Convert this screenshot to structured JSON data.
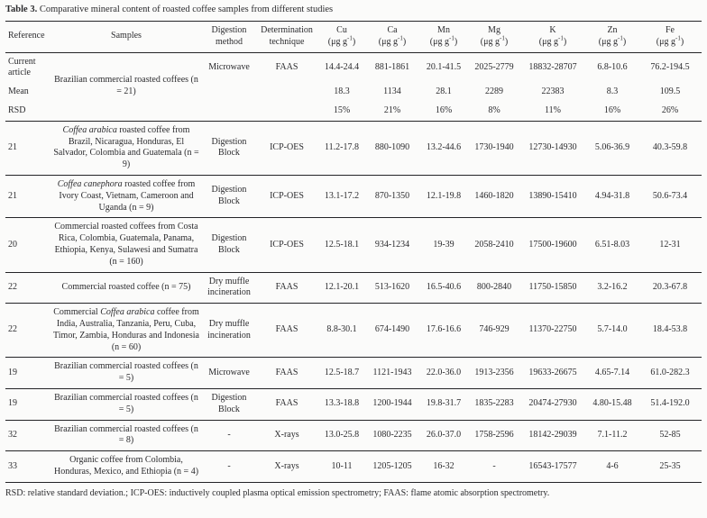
{
  "caption": {
    "label": "Table 3.",
    "text": "Comparative mineral content of roasted coffee samples from different studies"
  },
  "table": {
    "text_columns": [
      {
        "key": "reference",
        "lines": [
          "Reference"
        ]
      },
      {
        "key": "samples",
        "lines": [
          "Samples"
        ]
      },
      {
        "key": "digestion",
        "lines": [
          "Digestion",
          "method"
        ]
      },
      {
        "key": "technique",
        "lines": [
          "Determination",
          "technique"
        ]
      }
    ],
    "element_columns": [
      {
        "key": "cu",
        "symbol": "Cu"
      },
      {
        "key": "ca",
        "symbol": "Ca"
      },
      {
        "key": "mn",
        "symbol": "Mn"
      },
      {
        "key": "mg",
        "symbol": "Mg"
      },
      {
        "key": "k",
        "symbol": "K"
      },
      {
        "key": "zn",
        "symbol": "Zn"
      },
      {
        "key": "fe",
        "symbol": "Fe"
      }
    ],
    "unit": {
      "prefix": "(μg g",
      "exponent": "-1",
      "suffix": ")"
    },
    "current_block": {
      "samples": [
        {
          "t": "Brazilian commercial roasted coffees (n = 21)",
          "i": false
        }
      ],
      "rows": [
        {
          "reference": "Current article",
          "digestion": "Microwave",
          "technique": "FAAS",
          "values": [
            "14.4-24.4",
            "881-1861",
            "20.1-41.5",
            "2025-2779",
            "18832-28707",
            "6.8-10.6",
            "76.2-194.5"
          ]
        },
        {
          "reference": "Mean",
          "digestion": "",
          "technique": "",
          "values": [
            "18.3",
            "1134",
            "28.1",
            "2289",
            "22383",
            "8.3",
            "109.5"
          ]
        },
        {
          "reference": "RSD",
          "digestion": "",
          "technique": "",
          "values": [
            "15%",
            "21%",
            "16%",
            "8%",
            "11%",
            "16%",
            "26%"
          ]
        }
      ]
    },
    "rows": [
      {
        "reference": "21",
        "samples": [
          {
            "t": "Coffea arabica",
            "i": true
          },
          {
            "t": " roasted coffee from Brazil, Nicaragua, Honduras, El Salvador, Colombia and Guatemala (n = 9)",
            "i": false
          }
        ],
        "digestion": "Digestion Block",
        "technique": "ICP-OES",
        "values": [
          "11.2-17.8",
          "880-1090",
          "13.2-44.6",
          "1730-1940",
          "12730-14930",
          "5.06-36.9",
          "40.3-59.8"
        ]
      },
      {
        "reference": "21",
        "samples": [
          {
            "t": "Coffea canephora",
            "i": true
          },
          {
            "t": " roasted coffee from Ivory Coast, Vietnam, Cameroon and Uganda (n = 9)",
            "i": false
          }
        ],
        "digestion": "Digestion Block",
        "technique": "ICP-OES",
        "values": [
          "13.1-17.2",
          "870-1350",
          "12.1-19.8",
          "1460-1820",
          "13890-15410",
          "4.94-31.8",
          "50.6-73.4"
        ]
      },
      {
        "reference": "20",
        "samples": [
          {
            "t": "Commercial roasted coffees from Costa Rica, Colombia, Guatemala, Panama, Ethiopia, Kenya, Sulawesi and Sumatra (n = 160)",
            "i": false
          }
        ],
        "digestion": "Digestion Block",
        "technique": "ICP-OES",
        "values": [
          "12.5-18.1",
          "934-1234",
          "19-39",
          "2058-2410",
          "17500-19600",
          "6.51-8.03",
          "12-31"
        ]
      },
      {
        "reference": "22",
        "samples": [
          {
            "t": "Commercial roasted coffee (n = 75)",
            "i": false
          }
        ],
        "digestion": "Dry muffle incineration",
        "technique": "FAAS",
        "values": [
          "12.1-20.1",
          "513-1620",
          "16.5-40.6",
          "800-2840",
          "11750-15850",
          "3.2-16.2",
          "20.3-67.8"
        ]
      },
      {
        "reference": "22",
        "samples": [
          {
            "t": "Commercial ",
            "i": false
          },
          {
            "t": "Coffea arabica",
            "i": true
          },
          {
            "t": " coffee from India, Australia, Tanzania, Peru, Cuba, Timor, Zambia, Honduras and Indonesia (n = 60)",
            "i": false
          }
        ],
        "digestion": "Dry muffle incineration",
        "technique": "FAAS",
        "values": [
          "8.8-30.1",
          "674-1490",
          "17.6-16.6",
          "746-929",
          "11370-22750",
          "5.7-14.0",
          "18.4-53.8"
        ]
      },
      {
        "reference": "19",
        "samples": [
          {
            "t": "Brazilian commercial roasted coffees (n = 5)",
            "i": false
          }
        ],
        "digestion": "Microwave",
        "technique": "FAAS",
        "values": [
          "12.5-18.7",
          "1121-1943",
          "22.0-36.0",
          "1913-2356",
          "19633-26675",
          "4.65-7.14",
          "61.0-282.3"
        ]
      },
      {
        "reference": "19",
        "samples": [
          {
            "t": "Brazilian commercial roasted coffees (n = 5)",
            "i": false
          }
        ],
        "digestion": "Digestion Block",
        "technique": "FAAS",
        "values": [
          "13.3-18.8",
          "1200-1944",
          "19.8-31.7",
          "1835-2283",
          "20474-27930",
          "4.80-15.48",
          "51.4-192.0"
        ]
      },
      {
        "reference": "32",
        "samples": [
          {
            "t": "Brazilian commercial roasted coffees (n = 8)",
            "i": false
          }
        ],
        "digestion": "-",
        "technique": "X-rays",
        "values": [
          "13.0-25.8",
          "1080-2235",
          "26.0-37.0",
          "1758-2596",
          "18142-29039",
          "7.1-11.2",
          "52-85"
        ]
      },
      {
        "reference": "33",
        "samples": [
          {
            "t": "Organic coffee from Colombia, Honduras, Mexico, and Ethiopia (n = 4)",
            "i": false
          }
        ],
        "digestion": "-",
        "technique": "X-rays",
        "values": [
          "10-11",
          "1205-1205",
          "16-32",
          "-",
          "16543-17577",
          "4-6",
          "25-35"
        ]
      }
    ]
  },
  "footnote": "RSD: relative standard deviation.; ICP-OES: inductively coupled plasma optical emission spectrometry; FAAS: flame atomic absorption spectrometry."
}
